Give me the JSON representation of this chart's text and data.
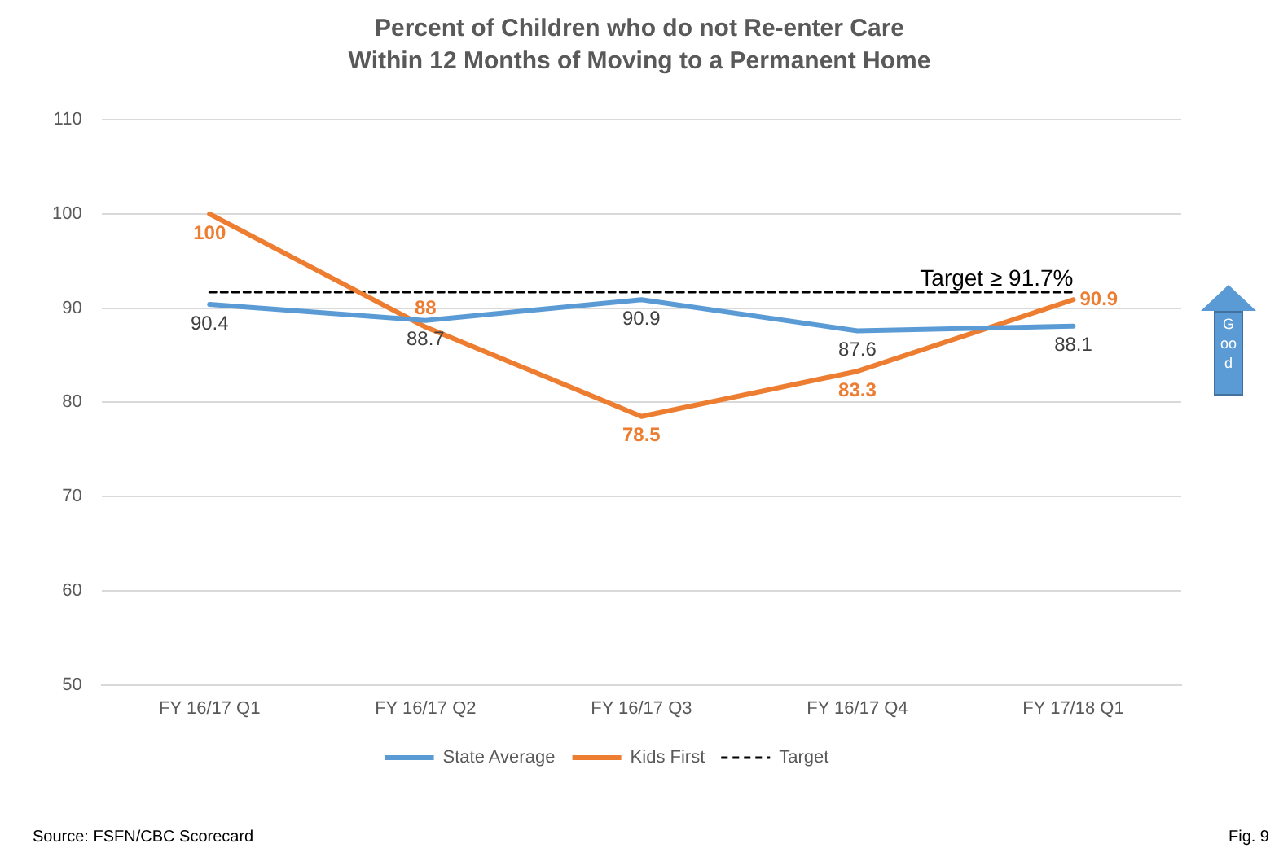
{
  "chart_data": {
    "type": "line",
    "title": "Percent of Children who do not Re-enter Care Within 12 Months of Moving to a Permanent Home",
    "categories": [
      "FY 16/17 Q1",
      "FY 16/17 Q2",
      "FY 16/17 Q3",
      "FY 16/17 Q4",
      "FY 17/18 Q1"
    ],
    "series": [
      {
        "name": "State Average",
        "color": "#5b9bd5",
        "values": [
          90.4,
          88.7,
          90.9,
          87.6,
          88.1
        ],
        "value_labels": [
          "90.4",
          "88.7",
          "90.9",
          "87.6",
          "88.1"
        ]
      },
      {
        "name": "Kids First",
        "color": "#ed7d31",
        "values": [
          100,
          88,
          78.5,
          83.3,
          90.9
        ],
        "value_labels": [
          "100",
          "88",
          "78.5",
          "83.3",
          "90.9"
        ]
      },
      {
        "name": "Target",
        "color": "#000000",
        "values": [
          91.7,
          91.7,
          91.7,
          91.7,
          91.7
        ],
        "line_style": "dashed"
      }
    ],
    "ylim": [
      50,
      110
    ],
    "yticks": [
      50,
      60,
      70,
      80,
      90,
      100,
      110
    ],
    "grid": "y",
    "legend": "bottom",
    "marker": "none",
    "annotations": [
      {
        "text": "Target ≥ 91.7%",
        "x": "FY 17/18 Q1",
        "y": 91.7
      },
      "Good",
      "Source: FSFN/CBC Scorecard",
      "Fig. 9"
    ]
  }
}
